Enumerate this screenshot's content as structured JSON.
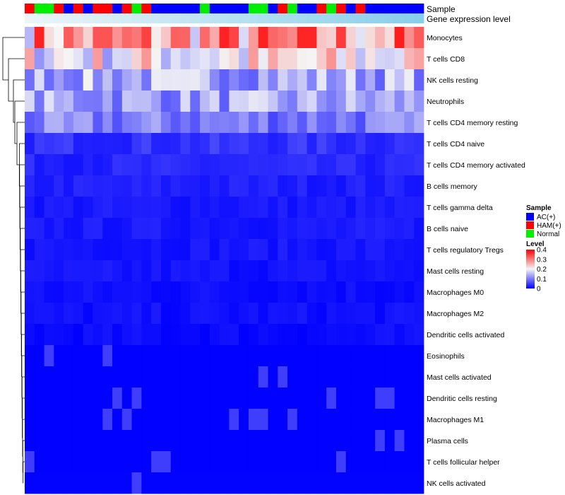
{
  "chart_data": {
    "type": "heatmap",
    "annotation_rows": [
      "Sample",
      "Gene expression level"
    ],
    "sample_groups": [
      "H",
      "N",
      "N",
      "H",
      "A",
      "H",
      "A",
      "H",
      "H",
      "A",
      "H",
      "N",
      "H",
      "A",
      "A",
      "A",
      "A",
      "A",
      "N",
      "A",
      "A",
      "A",
      "A",
      "N",
      "N",
      "A",
      "H",
      "N",
      "A",
      "A",
      "H",
      "N",
      "H",
      "A",
      "H",
      "A",
      "A",
      "A",
      "A",
      "A",
      "A"
    ],
    "cell_types": [
      "Monocytes",
      "T cells CD8",
      "NK cells resting",
      "Neutrophils",
      "T cells CD4 memory resting",
      "T cells CD4 naive",
      "T cells CD4 memory activated",
      "B cells memory",
      "T cells gamma delta",
      "B cells naive",
      "T cells regulatory  Tregs",
      "Mast cells resting",
      "Macrophages M0",
      "Macrophages M2",
      "Dendritic cells activated",
      "Eosinophils",
      "Mast cells activated",
      "Dendritic cells resting",
      "Macrophages M1",
      "Plasma cells",
      "T cells follicular helper",
      "NK cells activated"
    ],
    "row_levels": [
      0.27,
      0.2,
      0.14,
      0.13,
      0.1,
      0.04,
      0.03,
      0.025,
      0.02,
      0.02,
      0.018,
      0.015,
      0.012,
      0.012,
      0.008,
      0.001,
      0.001,
      0.001,
      0.001,
      0.001,
      0.001,
      0.002
    ],
    "color_scale": {
      "min": 0,
      "max": 0.4,
      "low": "#0000ff",
      "mid": "#f5f5f5",
      "high": "#ff0000",
      "midpoint": 0.2
    },
    "legend": {
      "sample_title": "Sample",
      "sample_entries": [
        {
          "key": "A",
          "label": "AC(+)",
          "color": "#0000ff"
        },
        {
          "key": "H",
          "label": "HAM(+)",
          "color": "#ff0000"
        },
        {
          "key": "N",
          "label": "Normal",
          "color": "#00ee00"
        }
      ],
      "level_title": "Level",
      "level_ticks": [
        "0.4",
        "0.3",
        "0.2",
        "0.1",
        "0"
      ],
      "level_values": [
        0.4,
        0.3,
        0.2,
        0.1,
        0
      ]
    },
    "gene_expression_color": "#87ceeb"
  }
}
